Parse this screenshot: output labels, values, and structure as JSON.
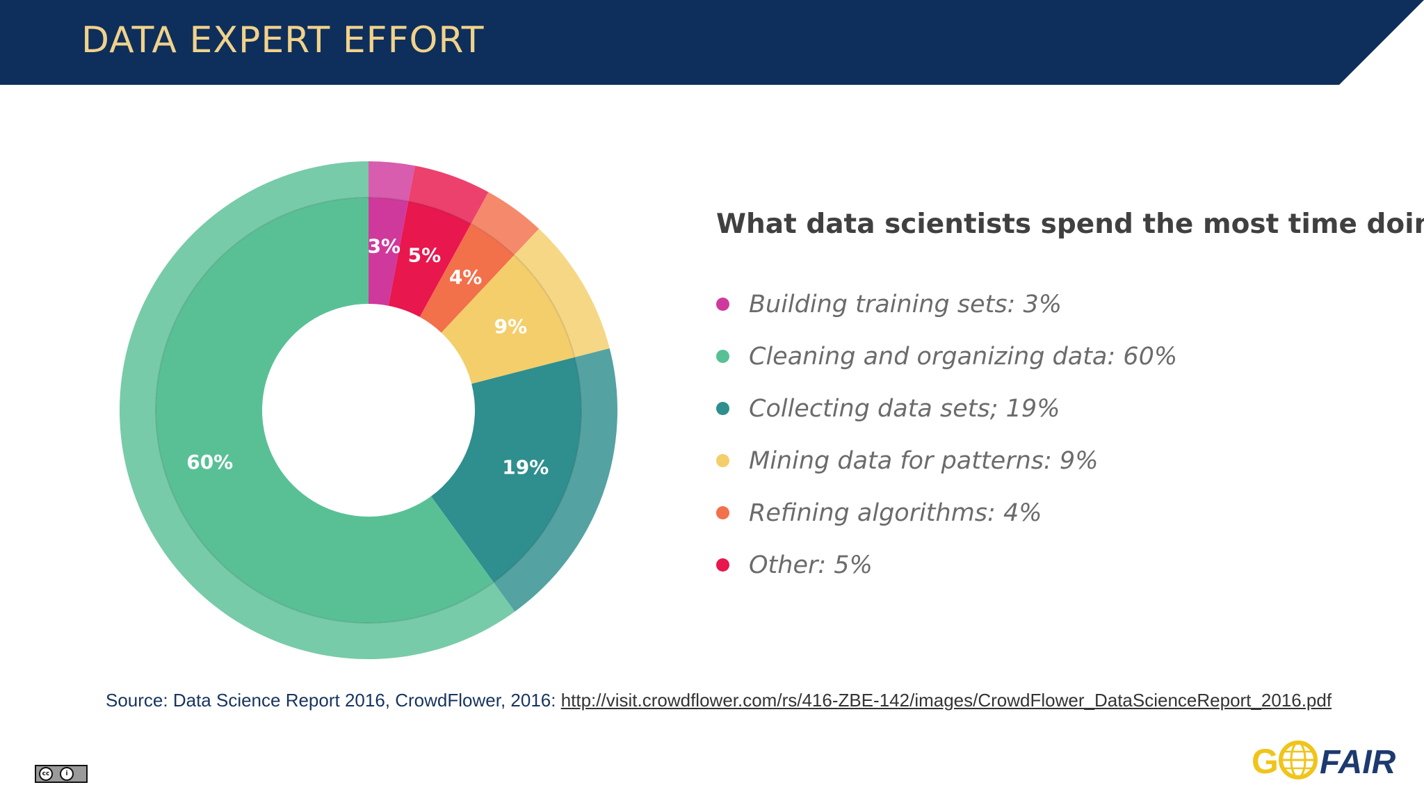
{
  "slide": {
    "title": "DATA EXPERT EFFORT",
    "header_color": "#0e2f5c",
    "title_color": "#f1d28a"
  },
  "chart_data": {
    "type": "pie",
    "variant": "donut",
    "title": "What data scientists spend the most time doing",
    "slices": [
      {
        "label": "Building training sets",
        "value": 3,
        "value_label": "3%",
        "color": "#d0399c"
      },
      {
        "label": "Other",
        "value": 5,
        "value_label": "5%",
        "color": "#e8174d"
      },
      {
        "label": "Refining algorithms",
        "value": 4,
        "value_label": "4%",
        "color": "#f2704a"
      },
      {
        "label": "Mining data for patterns",
        "value": 9,
        "value_label": "9%",
        "color": "#f3ce6b"
      },
      {
        "label": "Collecting data sets",
        "value": 19,
        "value_label": "19%",
        "color": "#2f8e8e"
      },
      {
        "label": "Cleaning and organizing data",
        "value": 60,
        "value_label": "60%",
        "color": "#59c096"
      }
    ],
    "legend": {
      "placement": "right",
      "items": [
        {
          "text": "Building training sets: 3%",
          "color": "#d0399c"
        },
        {
          "text": "Cleaning and organizing data: 60%",
          "color": "#59c096"
        },
        {
          "text": "Collecting data sets; 19%",
          "color": "#2f8e8e"
        },
        {
          "text": "Mining data for patterns: 9%",
          "color": "#f3ce6b"
        },
        {
          "text": "Refining algorithms: 4%",
          "color": "#f2704a"
        },
        {
          "text": "Other: 5%",
          "color": "#e8174d"
        }
      ]
    }
  },
  "source": {
    "prefix": "Source: Data Science Report 2016, CrowdFlower, 2016: ",
    "url": "http://visit.crowdflower.com/rs/416-ZBE-142/images/CrowdFlower_DataScienceReport_2016.pdf"
  },
  "license_badge": {
    "cc": "cc",
    "by": "i"
  },
  "logo": {
    "text_left": "G",
    "text_right": "FAIR",
    "color_gold": "#f0c419",
    "color_navy": "#1d3a6e"
  }
}
